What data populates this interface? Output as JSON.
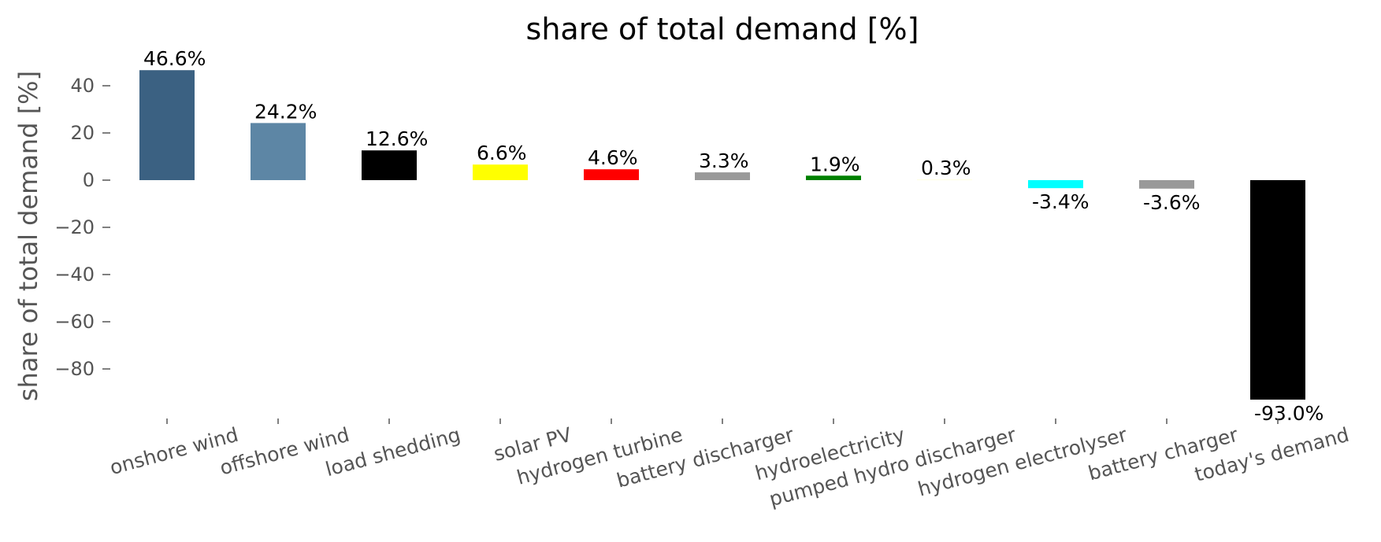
{
  "chart_data": {
    "type": "bar",
    "title": "share of total demand [%]",
    "xlabel": "",
    "ylabel": "share of total demand [%]",
    "ylim": [
      -101,
      50
    ],
    "yticks": [
      40,
      20,
      0,
      -20,
      -40,
      -60,
      -80
    ],
    "ytick_labels": [
      "40",
      "20",
      "0",
      "−20",
      "−40",
      "−60",
      "−80"
    ],
    "grid": false,
    "categories": [
      "onshore wind",
      "offshore wind",
      "load shedding",
      "solar PV",
      "hydrogen turbine",
      "battery discharger",
      "hydroelectricity",
      "pumped hydro discharger",
      "hydrogen electrolyser",
      "battery charger",
      "today's demand"
    ],
    "values": [
      46.6,
      24.2,
      12.6,
      6.6,
      4.6,
      3.3,
      1.9,
      0.3,
      -3.4,
      -3.6,
      -93.0
    ],
    "data_labels": [
      "46.6%",
      "24.2%",
      "12.6%",
      "6.6%",
      "4.6%",
      "3.3%",
      "1.9%",
      "0.3%",
      "-3.4%",
      "-3.6%",
      "-93.0%"
    ],
    "colors": [
      "#3b6182",
      "#5d86a5",
      "#000000",
      "#ffff00",
      "#ff0000",
      "#999999",
      "#008000",
      "#ffffe0",
      "#00ffff",
      "#999999",
      "#000000"
    ]
  }
}
